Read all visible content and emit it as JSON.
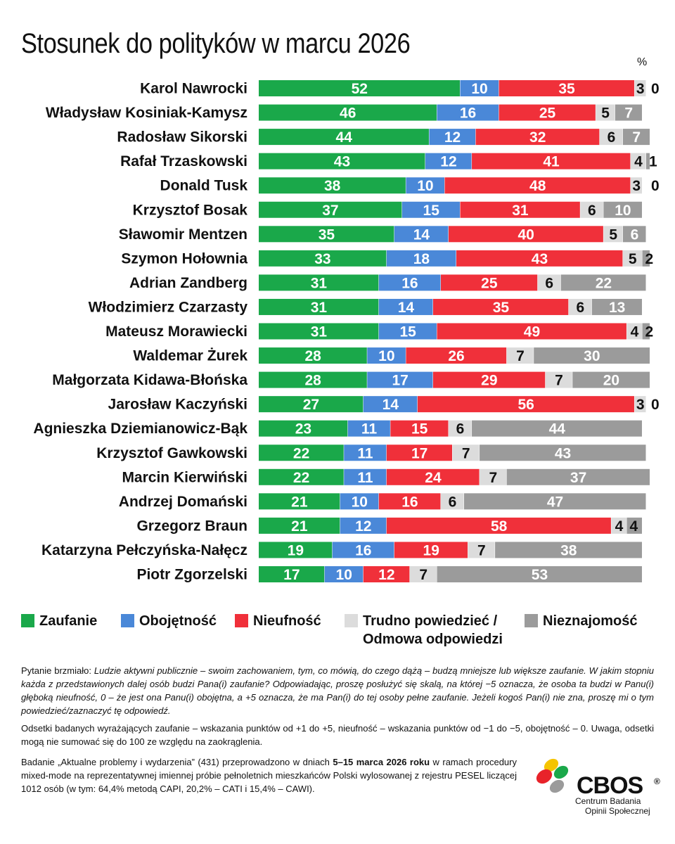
{
  "title": "Stosunek do polityków w marcu 2026",
  "unit": "%",
  "colors": {
    "trust": "#1aa84a",
    "indifference": "#4a88d8",
    "distrust": "#f0303a",
    "hard_to_say": "#dcdcdc",
    "unknown": "#9b9b9b"
  },
  "legend": {
    "trust": "Zaufanie",
    "indifference": "Obojętność",
    "distrust": "Nieufność",
    "hard_to_say_line1": "Trudno powiedzieć /",
    "hard_to_say_line2": "Odmowa odpowiedzi",
    "unknown": "Nieznajomość"
  },
  "chart_data": {
    "type": "bar",
    "orientation": "horizontal",
    "stacked": true,
    "title": "Stosunek do polityków w marcu 2026",
    "xlabel": "%",
    "xlim": [
      0,
      100
    ],
    "categories": [
      "Karol Nawrocki",
      "Władysław Kosiniak-Kamysz",
      "Radosław Sikorski",
      "Rafał Trzaskowski",
      "Donald Tusk",
      "Krzysztof Bosak",
      "Sławomir Mentzen",
      "Szymon Hołownia",
      "Adrian Zandberg",
      "Włodzimierz Czarzasty",
      "Mateusz Morawiecki",
      "Waldemar Żurek",
      "Małgorzata Kidawa-Błońska",
      "Jarosław Kaczyński",
      "Agnieszka Dziemianowicz-Bąk",
      "Krzysztof Gawkowski",
      "Marcin Kierwiński",
      "Andrzej Domański",
      "Grzegorz Braun",
      "Katarzyna Pełczyńska-Nałęcz",
      "Piotr Zgorzelski"
    ],
    "series": [
      {
        "name": "Zaufanie",
        "key": "trust",
        "values": [
          52,
          46,
          44,
          43,
          38,
          37,
          35,
          33,
          31,
          31,
          31,
          28,
          28,
          27,
          23,
          22,
          22,
          21,
          21,
          19,
          17
        ]
      },
      {
        "name": "Obojętność",
        "key": "indifference",
        "values": [
          10,
          16,
          12,
          12,
          10,
          15,
          14,
          18,
          16,
          14,
          15,
          10,
          17,
          14,
          11,
          11,
          11,
          10,
          12,
          16,
          10
        ]
      },
      {
        "name": "Nieufność",
        "key": "distrust",
        "values": [
          35,
          25,
          32,
          41,
          48,
          31,
          40,
          43,
          25,
          35,
          49,
          26,
          29,
          56,
          15,
          17,
          24,
          16,
          58,
          19,
          12
        ]
      },
      {
        "name": "Trudno powiedzieć / Odmowa odpowiedzi",
        "key": "hard_to_say",
        "values": [
          3,
          5,
          6,
          4,
          3,
          6,
          5,
          5,
          6,
          6,
          4,
          7,
          7,
          3,
          6,
          7,
          7,
          6,
          4,
          7,
          7
        ]
      },
      {
        "name": "Nieznajomość",
        "key": "unknown",
        "values": [
          0,
          7,
          7,
          1,
          0,
          10,
          6,
          2,
          22,
          13,
          2,
          30,
          20,
          0,
          44,
          43,
          37,
          47,
          4,
          38,
          53
        ]
      }
    ]
  },
  "notes": {
    "question_prefix": "Pytanie brzmiało: ",
    "question_text": "Ludzie aktywni publicznie – swoim zachowaniem, tym, co mówią, do czego dążą – budzą mniejsze lub większe zaufanie. W jakim stopniu każda z przedstawionych dalej osób budzi Pana(i) zaufanie? Odpowiadając, proszę posłużyć się skalą, na której −5 oznacza, że osoba ta budzi w Panu(i) głęboką nieufność, 0 – że jest ona Panu(i) obojętna, a +5 oznacza, że ma Pan(i) do tej osoby pełne zaufanie. Jeżeli kogoś Pan(i) nie zna, proszę mi o tym powiedzieć/zaznaczyć tę odpowiedź.",
    "definition": "Odsetki badanych wyrażających zaufanie – wskazania punktów od +1 do +5, nieufność – wskazania punktów od −1 do −5, obojętność – 0. Uwaga, odsetki mogą nie sumować się do 100 ze względu na zaokrąglenia.",
    "study_prefix": "Badanie „Aktualne problemy i wydarzenia” (431) przeprowadzono w dniach ",
    "study_dates": "5–15 marca 2026 roku",
    "study_suffix": " w ramach procedury mixed-mode na reprezentatywnej imiennej próbie pełnoletnich mieszkańców Polski wylosowanej z rejestru PESEL liczącej 1012 osób (w tym: 64,4% metodą CAPI, 20,2% – CATI i 15,4% – CAWI)."
  },
  "logo": {
    "name": "CBOS",
    "registered": "®",
    "subtitle_line1": "Centrum Badania",
    "subtitle_line2": "Opinii Społecznej"
  }
}
